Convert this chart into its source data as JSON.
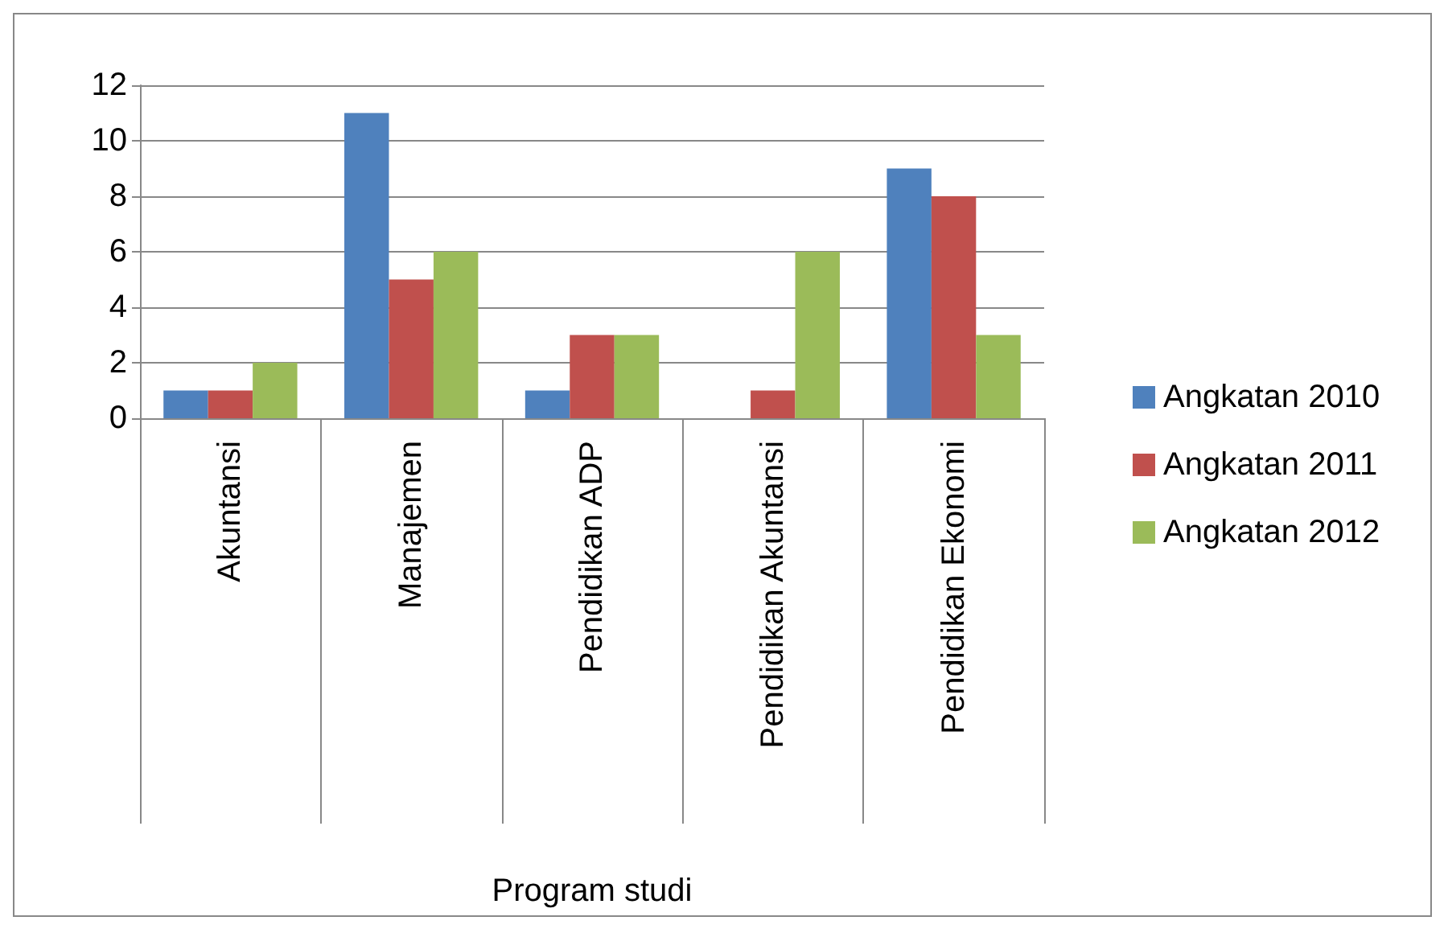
{
  "chart_data": {
    "type": "bar",
    "xlabel": "Program studi",
    "categories": [
      "Akuntansi",
      "Manajemen",
      "Pendidikan ADP",
      "Pendidikan Akuntansi",
      "Pendidikan Ekonomi"
    ],
    "series": [
      {
        "name": "Angkatan 2010",
        "color": "#4f81bd",
        "values": [
          1,
          11,
          1,
          0,
          9
        ]
      },
      {
        "name": "Angkatan 2011",
        "color": "#c0504d",
        "values": [
          1,
          5,
          3,
          1,
          8
        ]
      },
      {
        "name": "Angkatan 2012",
        "color": "#9bbb59",
        "values": [
          2,
          6,
          3,
          6,
          3
        ]
      }
    ],
    "ylim": [
      0,
      12
    ],
    "yticks": [
      0,
      2,
      4,
      6,
      8,
      10,
      12
    ],
    "grid": "y",
    "legend": "right"
  }
}
